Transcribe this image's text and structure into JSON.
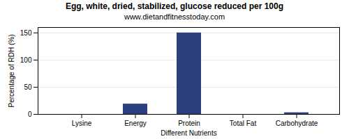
{
  "chart_data": {
    "type": "bar",
    "title": "Egg, white, dried, stabilized, glucose reduced per 100g",
    "subtitle": "www.dietandfitnesstoday.com",
    "xlabel": "Different Nutrients",
    "ylabel": "Percentage of RDH (%)",
    "categories": [
      "Lysine",
      "Energy",
      "Protein",
      "Total Fat",
      "Carbohydrate"
    ],
    "values": [
      0,
      19,
      150,
      0,
      3
    ],
    "color": "#2b3f7e",
    "ylim": [
      0,
      160
    ],
    "yticks": [
      0,
      50,
      100,
      150
    ],
    "grid": true
  }
}
